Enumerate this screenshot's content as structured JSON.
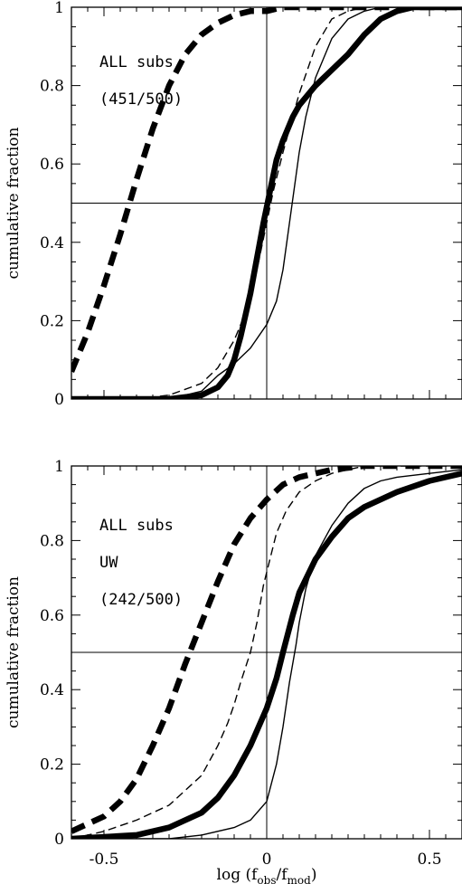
{
  "chart_data": [
    {
      "type": "line",
      "xlabel": "",
      "ylabel": "cumulative fraction",
      "xlim": [
        -0.6,
        0.6
      ],
      "ylim": [
        0,
        1
      ],
      "x_ticks": [],
      "y_ticks": [
        "0",
        "0.2",
        "0.4",
        "0.6",
        "0.8",
        "1"
      ],
      "annotations": [
        "ALL subs",
        "(451/500)"
      ],
      "reference_lines": {
        "x": 0,
        "y": 0.5
      },
      "grid": false,
      "series": [
        {
          "style": "thick-dashed",
          "x": [
            -0.6,
            -0.55,
            -0.5,
            -0.45,
            -0.4,
            -0.35,
            -0.3,
            -0.25,
            -0.2,
            -0.15,
            -0.1,
            -0.05,
            0,
            0.05,
            0.1,
            0.15,
            0.2,
            0.3,
            0.4,
            0.6
          ],
          "y": [
            0.07,
            0.17,
            0.29,
            0.42,
            0.56,
            0.69,
            0.8,
            0.88,
            0.93,
            0.96,
            0.98,
            0.99,
            0.99,
            1,
            1,
            1,
            1,
            1,
            1,
            1
          ]
        },
        {
          "style": "thick-solid",
          "x": [
            -0.6,
            -0.3,
            -0.2,
            -0.15,
            -0.12,
            -0.1,
            -0.08,
            -0.05,
            -0.03,
            -0.01,
            0.01,
            0.03,
            0.05,
            0.08,
            0.1,
            0.15,
            0.2,
            0.25,
            0.3,
            0.35,
            0.4,
            0.45,
            0.5,
            0.6
          ],
          "y": [
            0,
            0,
            0.01,
            0.03,
            0.06,
            0.1,
            0.16,
            0.27,
            0.36,
            0.45,
            0.53,
            0.61,
            0.66,
            0.72,
            0.75,
            0.8,
            0.84,
            0.88,
            0.93,
            0.97,
            0.99,
            1,
            1,
            1
          ]
        },
        {
          "style": "thin-dashed",
          "x": [
            -0.6,
            -0.4,
            -0.3,
            -0.2,
            -0.15,
            -0.1,
            -0.07,
            -0.05,
            -0.03,
            -0.01,
            0,
            0.02,
            0.05,
            0.08,
            0.1,
            0.15,
            0.2,
            0.25,
            0.3,
            0.4,
            0.6
          ],
          "y": [
            0,
            0,
            0.01,
            0.04,
            0.08,
            0.15,
            0.21,
            0.27,
            0.33,
            0.41,
            0.45,
            0.53,
            0.63,
            0.72,
            0.78,
            0.9,
            0.97,
            0.99,
            1,
            1,
            1
          ]
        },
        {
          "style": "thin-solid",
          "x": [
            -0.6,
            -0.3,
            -0.2,
            -0.15,
            -0.1,
            -0.05,
            0,
            0.03,
            0.05,
            0.07,
            0.09,
            0.1,
            0.12,
            0.15,
            0.2,
            0.25,
            0.3,
            0.35,
            0.4,
            0.6
          ],
          "y": [
            0,
            0,
            0.02,
            0.06,
            0.09,
            0.13,
            0.19,
            0.25,
            0.33,
            0.45,
            0.57,
            0.63,
            0.72,
            0.82,
            0.92,
            0.97,
            0.99,
            1,
            1,
            1
          ]
        }
      ]
    },
    {
      "type": "line",
      "xlabel": "log (f",
      "xlabel_sub1": "obs",
      "xlabel_mid": "/f",
      "xlabel_sub2": "mod",
      "xlabel_end": ")",
      "ylabel": "cumulative fraction",
      "xlim": [
        -0.6,
        0.6
      ],
      "ylim": [
        0,
        1
      ],
      "x_ticks": [
        "-0.5",
        "0",
        "0.5"
      ],
      "y_ticks": [
        "0",
        "0.2",
        "0.4",
        "0.6",
        "0.8",
        "1"
      ],
      "annotations": [
        "ALL subs",
        "UW",
        "(242/500)"
      ],
      "reference_lines": {
        "x": 0,
        "y": 0.5
      },
      "grid": false,
      "series": [
        {
          "style": "thick-dashed",
          "x": [
            -0.6,
            -0.5,
            -0.45,
            -0.4,
            -0.35,
            -0.3,
            -0.25,
            -0.2,
            -0.15,
            -0.1,
            -0.05,
            0,
            0.05,
            0.1,
            0.15,
            0.2,
            0.3,
            0.4,
            0.6
          ],
          "y": [
            0.02,
            0.06,
            0.1,
            0.16,
            0.25,
            0.35,
            0.47,
            0.58,
            0.69,
            0.79,
            0.86,
            0.91,
            0.95,
            0.97,
            0.98,
            0.99,
            1,
            1,
            1
          ]
        },
        {
          "style": "thick-solid",
          "x": [
            -0.6,
            -0.4,
            -0.3,
            -0.2,
            -0.15,
            -0.1,
            -0.05,
            0,
            0.03,
            0.05,
            0.08,
            0.1,
            0.15,
            0.2,
            0.25,
            0.3,
            0.4,
            0.5,
            0.6
          ],
          "y": [
            0,
            0.01,
            0.03,
            0.07,
            0.11,
            0.17,
            0.25,
            0.35,
            0.43,
            0.5,
            0.6,
            0.66,
            0.75,
            0.81,
            0.86,
            0.89,
            0.93,
            0.96,
            0.98
          ]
        },
        {
          "style": "thin-dashed",
          "x": [
            -0.6,
            -0.5,
            -0.4,
            -0.3,
            -0.2,
            -0.15,
            -0.12,
            -0.1,
            -0.08,
            -0.05,
            -0.03,
            -0.01,
            0.01,
            0.03,
            0.06,
            0.1,
            0.15,
            0.2,
            0.25,
            0.3,
            0.4,
            0.6
          ],
          "y": [
            0,
            0.02,
            0.05,
            0.09,
            0.17,
            0.25,
            0.31,
            0.36,
            0.42,
            0.5,
            0.58,
            0.68,
            0.75,
            0.82,
            0.88,
            0.93,
            0.96,
            0.98,
            0.99,
            1,
            1,
            1
          ]
        },
        {
          "style": "thin-solid",
          "x": [
            -0.6,
            -0.3,
            -0.2,
            -0.1,
            -0.05,
            0,
            0.03,
            0.05,
            0.07,
            0.09,
            0.1,
            0.12,
            0.15,
            0.2,
            0.25,
            0.3,
            0.35,
            0.4,
            0.5,
            0.6
          ],
          "y": [
            0,
            0,
            0.01,
            0.03,
            0.05,
            0.1,
            0.2,
            0.3,
            0.42,
            0.52,
            0.58,
            0.67,
            0.76,
            0.84,
            0.9,
            0.94,
            0.96,
            0.97,
            0.98,
            0.99
          ]
        }
      ]
    }
  ]
}
